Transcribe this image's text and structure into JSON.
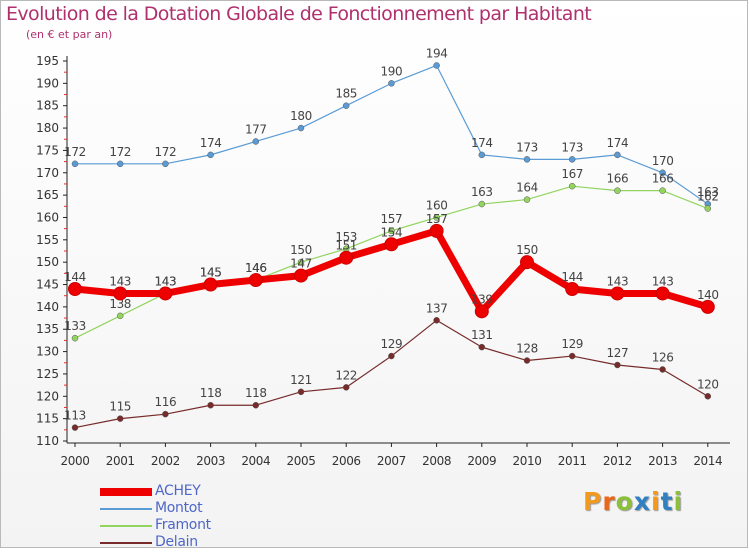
{
  "title": "Evolution de la Dotation Globale de Fonctionnement par Habitant",
  "subtitle": "(en € et par an)",
  "logo": {
    "text": "Proxiti",
    "colors": [
      "#f39a1c",
      "#e8671b",
      "#8cbf3a",
      "#2f7fc1",
      "#f39a1c",
      "#2f7fc1",
      "#8cbf3a"
    ]
  },
  "chart_data": {
    "type": "line",
    "x": [
      "2000",
      "2001",
      "2002",
      "2003",
      "2004",
      "2005",
      "2006",
      "2007",
      "2008",
      "2009",
      "2010",
      "2011",
      "2012",
      "2013",
      "2014"
    ],
    "ylim": [
      110,
      195
    ],
    "yticks": [
      110,
      115,
      120,
      125,
      130,
      135,
      140,
      145,
      150,
      155,
      160,
      165,
      170,
      175,
      180,
      185,
      190,
      195
    ],
    "grid": false,
    "legend_position": "bottom-left",
    "series": [
      {
        "name": "Montot",
        "color": "#5a9bd5",
        "values": [
          172,
          172,
          172,
          174,
          177,
          180,
          185,
          190,
          194,
          174,
          173,
          173,
          174,
          170,
          163
        ]
      },
      {
        "name": "Framont",
        "color": "#92d45f",
        "values": [
          133,
          138,
          143,
          145,
          146,
          150,
          153,
          157,
          160,
          163,
          164,
          167,
          166,
          166,
          162
        ]
      },
      {
        "name": "Delain",
        "color": "#772b2b",
        "values": [
          113,
          115,
          116,
          118,
          118,
          121,
          122,
          129,
          137,
          131,
          128,
          129,
          127,
          126,
          120
        ]
      },
      {
        "name": "ACHEY",
        "color": "#ee0000",
        "values": [
          144,
          143,
          143,
          145,
          146,
          147,
          151,
          154,
          157,
          139,
          150,
          144,
          143,
          143,
          140
        ]
      }
    ]
  },
  "legend": [
    "ACHEY",
    "Montot",
    "Framont",
    "Delain"
  ]
}
